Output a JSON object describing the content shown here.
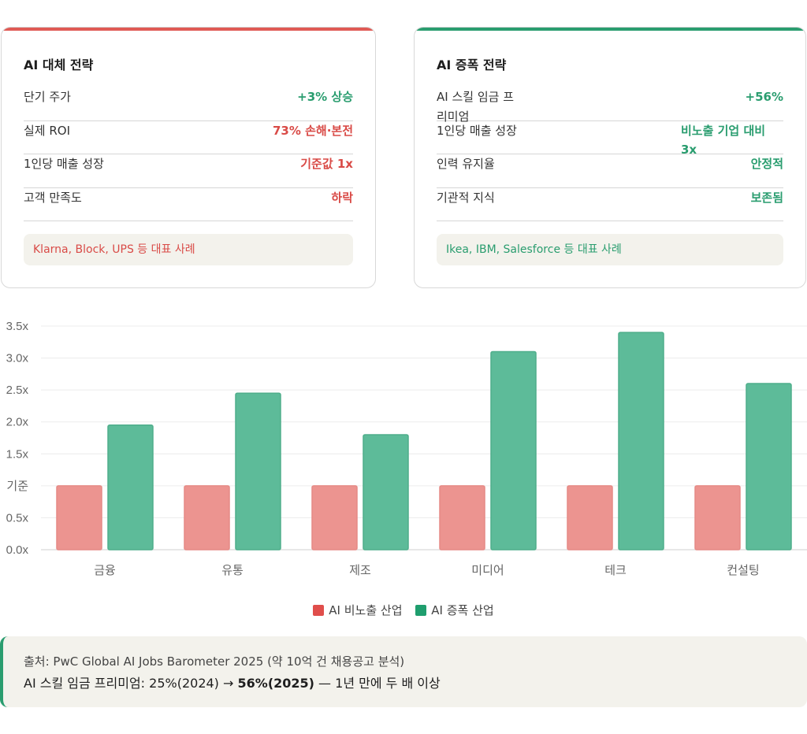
{
  "cards": {
    "replace": {
      "title": "AI 대체 전략",
      "metrics": [
        {
          "label": "단기 주가",
          "value": "+3% 상승"
        },
        {
          "label": "실제 ROI",
          "value": "73% 손해·본전"
        },
        {
          "label": "1인당 매출 성장",
          "value": "기준값 1x"
        },
        {
          "label": "고객 만족도",
          "value": "하락"
        }
      ],
      "example": "Klarna, Block, UPS 등 대표 사례",
      "color": "#d94b47"
    },
    "amplify": {
      "title": "AI 증폭 전략",
      "metrics": [
        {
          "label": "AI 스킬 임금 프리미엄",
          "value": "+56%"
        },
        {
          "label": "1인당 매출 성장",
          "value": "비노출 기업 대비 3x"
        },
        {
          "label": "인력 유지율",
          "value": "안정적"
        },
        {
          "label": "기관적 지식",
          "value": "보존됨"
        }
      ],
      "example": "Ikea, IBM, Salesforce 등 대표 사례",
      "color": "#2a9d6f"
    }
  },
  "chart_data": {
    "type": "bar",
    "categories": [
      "금융",
      "유통",
      "제조",
      "미디어",
      "테크",
      "컨설팅"
    ],
    "series": [
      {
        "name": "AI 비노출 산업",
        "color": "#ec9490",
        "values": [
          1,
          1,
          1,
          1,
          1,
          1
        ]
      },
      {
        "name": "AI 증폭 산업",
        "color": "#5dbb99",
        "values": [
          1.95,
          2.45,
          1.8,
          3.1,
          3.4,
          2.6
        ]
      }
    ],
    "ylim": [
      0,
      3.5
    ],
    "yticks": [
      {
        "value": 0,
        "label": "0.0x"
      },
      {
        "value": 0.5,
        "label": "0.5x"
      },
      {
        "value": 1,
        "label": "기준"
      },
      {
        "value": 1.5,
        "label": "1.5x"
      },
      {
        "value": 2,
        "label": "2.0x"
      },
      {
        "value": 2.5,
        "label": "2.5x"
      },
      {
        "value": 3,
        "label": "3.0x"
      },
      {
        "value": 3.5,
        "label": "3.5x"
      }
    ],
    "legend_position": "bottom-center",
    "grid": true
  },
  "source": {
    "line1": "출처: PwC Global AI Jobs Barometer 2025 (약 10억 건 채용공고 분석)",
    "line2_prefix": "AI 스킬 임금 프리미엄: 25%(2024) → ",
    "line2_bold": "56%(2025)",
    "line2_suffix": " — 1년 만에 두 배 이상"
  }
}
